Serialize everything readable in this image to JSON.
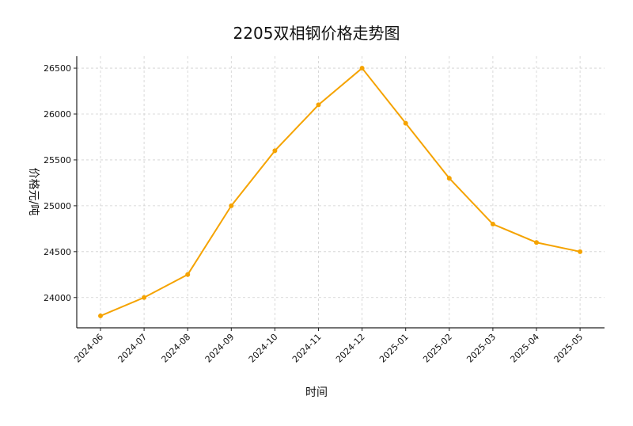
{
  "chart_data": {
    "type": "line",
    "title": "2205双相钢价格走势图",
    "xlabel": "时间",
    "ylabel": "价格元/吨",
    "categories": [
      "2024-06",
      "2024-07",
      "2024-08",
      "2024-09",
      "2024-10",
      "2024-11",
      "2024-12",
      "2025-01",
      "2025-02",
      "2025-03",
      "2025-04",
      "2025-05"
    ],
    "series": [
      {
        "values": [
          23800,
          24000,
          24250,
          25000,
          25600,
          26100,
          26500,
          25900,
          25300,
          24800,
          24600,
          24500
        ]
      }
    ],
    "ylim": [
      23670,
      26630
    ],
    "yticks": [
      24000,
      24500,
      25000,
      25500,
      26000,
      26500
    ],
    "grid": true,
    "legend": "none",
    "line_color": "#F5A300"
  }
}
